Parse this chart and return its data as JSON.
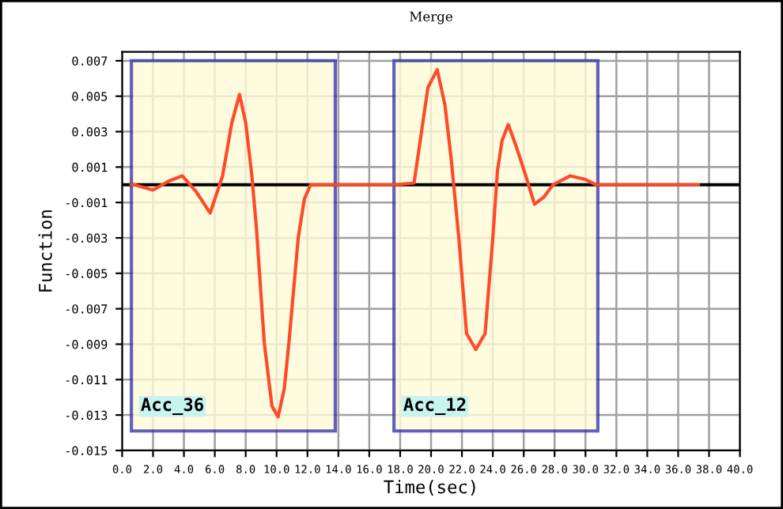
{
  "chart_data": {
    "type": "line",
    "title": "Merge",
    "xlabel": "Time(sec)",
    "ylabel": "Function",
    "xlim": [
      0,
      40
    ],
    "ylim": [
      -0.015,
      0.0075
    ],
    "xticks": [
      {
        "value": 0,
        "label": "0.0"
      },
      {
        "value": 2,
        "label": "2.0"
      },
      {
        "value": 4,
        "label": "4.0"
      },
      {
        "value": 6,
        "label": "6.0"
      },
      {
        "value": 8,
        "label": "8.0"
      },
      {
        "value": 10,
        "label": "10.0"
      },
      {
        "value": 12,
        "label": "12.0"
      },
      {
        "value": 14,
        "label": "14.0"
      },
      {
        "value": 16,
        "label": "16.0"
      },
      {
        "value": 18,
        "label": "18.0"
      },
      {
        "value": 20,
        "label": "20.0"
      },
      {
        "value": 22,
        "label": "22.0"
      },
      {
        "value": 24,
        "label": "24.0"
      },
      {
        "value": 26,
        "label": "26.0"
      },
      {
        "value": 28,
        "label": "28.0"
      },
      {
        "value": 30,
        "label": "30.0"
      },
      {
        "value": 32,
        "label": "32.0"
      },
      {
        "value": 34,
        "label": "34.0"
      },
      {
        "value": 36,
        "label": "36.0"
      },
      {
        "value": 38,
        "label": "38.0"
      },
      {
        "value": 40,
        "label": "40.0"
      }
    ],
    "yticks": [
      0.007,
      0.005,
      0.003,
      0.001,
      -0.001,
      -0.003,
      -0.005,
      -0.007,
      -0.009,
      -0.011,
      -0.013,
      -0.015
    ],
    "grid": true,
    "marker": "none",
    "line_style": "solid",
    "series": [
      {
        "color": "#000000",
        "x": [
          0,
          40
        ],
        "values": [
          0,
          0
        ]
      },
      {
        "color": "#ff4a2a",
        "x": [
          0.6,
          0.8,
          2.0,
          3.0,
          3.9,
          4.8,
          5.7,
          6.5,
          7.1,
          7.6,
          8.0,
          8.4,
          8.7,
          9.2,
          9.7,
          10.1,
          10.5,
          10.8,
          11.4,
          11.8,
          12.2,
          14.0,
          17.7,
          18.9,
          19.3,
          19.8,
          20.4,
          20.9,
          21.3,
          21.8,
          22.3,
          22.9,
          23.5,
          24.0,
          24.3,
          24.6,
          25.0,
          25.5,
          26.1,
          26.7,
          27.3,
          27.9,
          29.0,
          30.0,
          30.7,
          37.3
        ],
        "values": [
          0,
          0,
          -0.0003,
          0.0002,
          0.0005,
          -0.0004,
          -0.0016,
          0.0005,
          0.0035,
          0.0051,
          0.0035,
          0.0005,
          -0.0025,
          -0.0089,
          -0.0125,
          -0.0131,
          -0.0115,
          -0.0089,
          -0.003,
          -0.0008,
          0,
          0,
          0,
          0.0001,
          0.0025,
          0.0055,
          0.0065,
          0.0045,
          0.0015,
          -0.003,
          -0.0084,
          -0.0093,
          -0.0084,
          -0.003,
          0.0008,
          0.0025,
          0.0034,
          0.0022,
          0.0006,
          -0.0011,
          -0.0007,
          0,
          0.0005,
          0.0003,
          0,
          0
        ]
      }
    ],
    "bands": [
      {
        "axis": "x",
        "from": 0.6,
        "to": 13.8,
        "label": "Acc_36",
        "color": "#fffbd8"
      },
      {
        "axis": "x",
        "from": 17.6,
        "to": 30.8,
        "label": "Acc_12",
        "color": "#fffbd8"
      }
    ]
  }
}
